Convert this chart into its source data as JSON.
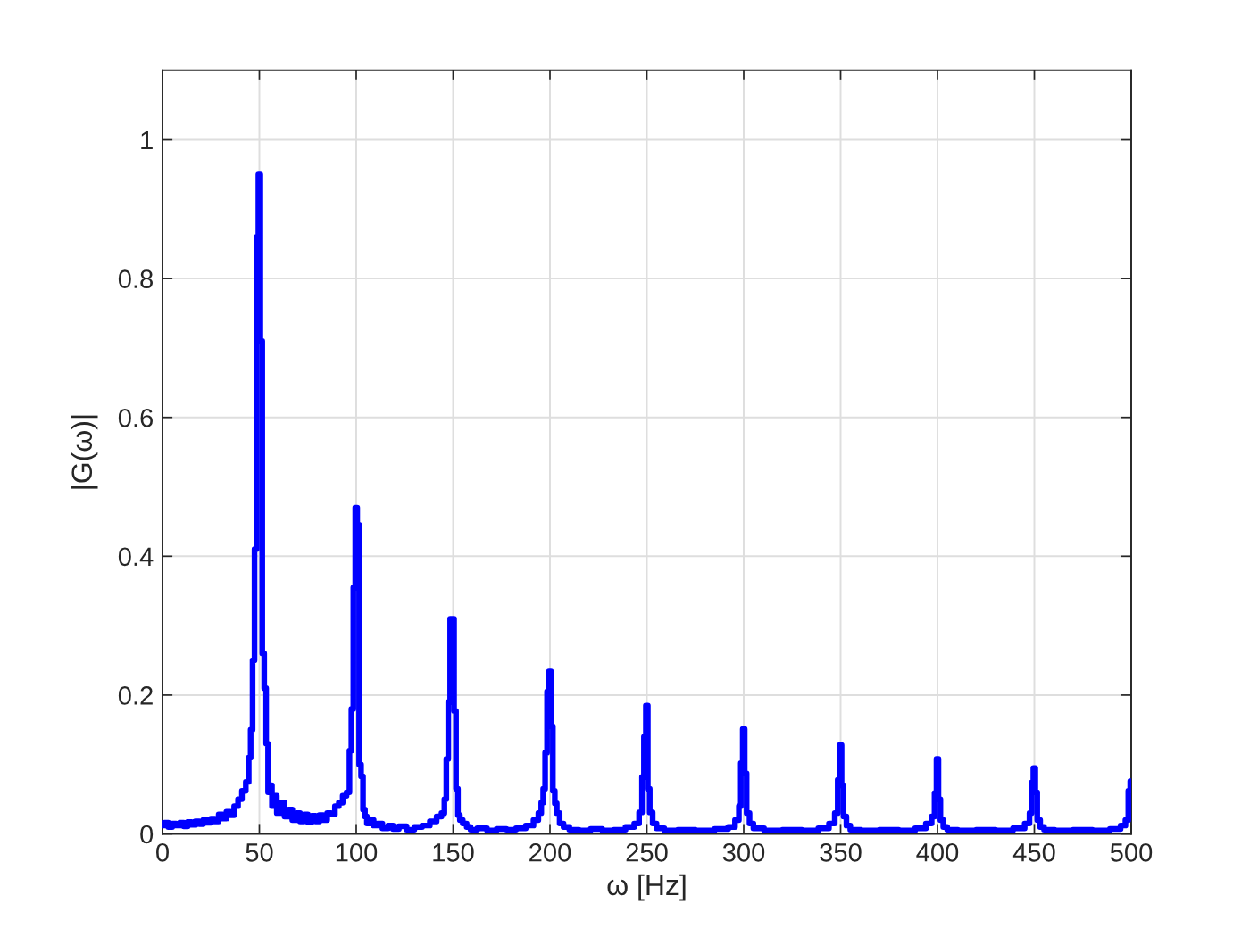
{
  "chart_data": {
    "type": "step",
    "xlabel": "ω [Hz]",
    "ylabel": "|G(ω)|",
    "x": [
      0,
      2,
      4,
      6,
      8,
      10,
      12,
      14,
      16,
      18,
      20,
      22,
      24,
      26,
      28,
      30,
      32,
      34,
      36,
      38,
      40,
      42,
      44,
      45,
      46,
      47,
      48,
      49,
      50,
      51,
      52,
      53,
      54,
      55,
      56,
      57,
      58,
      60,
      62,
      64,
      66,
      68,
      70,
      72,
      74,
      76,
      78,
      80,
      82,
      84,
      86,
      88,
      90,
      92,
      94,
      96,
      97,
      98,
      99,
      100,
      101,
      102,
      103,
      104,
      105,
      106,
      108,
      110,
      112,
      115,
      118,
      120,
      124,
      128,
      132,
      136,
      140,
      143,
      145,
      146,
      147,
      148,
      149,
      150,
      151,
      152,
      153,
      154,
      156,
      158,
      160,
      165,
      170,
      175,
      180,
      185,
      190,
      193,
      195,
      196,
      197,
      198,
      199,
      200,
      201,
      202,
      203,
      204,
      206,
      208,
      212,
      218,
      224,
      230,
      236,
      242,
      245,
      247,
      248,
      249,
      250,
      251,
      252,
      254,
      256,
      262,
      270,
      280,
      290,
      294,
      297,
      298,
      299,
      300,
      301,
      302,
      304,
      306,
      315,
      325,
      335,
      342,
      346,
      348,
      349,
      350,
      351,
      352,
      354,
      356,
      365,
      375,
      385,
      392,
      396,
      398,
      399,
      400,
      401,
      402,
      404,
      406,
      415,
      425,
      435,
      443,
      447,
      448,
      449,
      450,
      451,
      452,
      454,
      456,
      465,
      475,
      485,
      493,
      496,
      498,
      499,
      500
    ],
    "series": [
      {
        "color": "#0000ff",
        "values": [
          0.012,
          0.016,
          0.01,
          0.015,
          0.012,
          0.016,
          0.011,
          0.017,
          0.013,
          0.018,
          0.014,
          0.02,
          0.016,
          0.022,
          0.018,
          0.028,
          0.022,
          0.032,
          0.027,
          0.04,
          0.05,
          0.062,
          0.075,
          0.11,
          0.15,
          0.25,
          0.41,
          0.86,
          0.95,
          0.71,
          0.26,
          0.21,
          0.13,
          0.06,
          0.07,
          0.04,
          0.055,
          0.03,
          0.045,
          0.025,
          0.035,
          0.02,
          0.03,
          0.018,
          0.028,
          0.017,
          0.026,
          0.018,
          0.027,
          0.02,
          0.03,
          0.028,
          0.04,
          0.045,
          0.055,
          0.06,
          0.12,
          0.18,
          0.355,
          0.47,
          0.445,
          0.1,
          0.083,
          0.035,
          0.025,
          0.015,
          0.02,
          0.012,
          0.015,
          0.008,
          0.012,
          0.007,
          0.011,
          0.006,
          0.01,
          0.012,
          0.018,
          0.025,
          0.03,
          0.05,
          0.108,
          0.19,
          0.31,
          0.31,
          0.177,
          0.065,
          0.027,
          0.02,
          0.015,
          0.01,
          0.006,
          0.008,
          0.005,
          0.007,
          0.006,
          0.008,
          0.012,
          0.02,
          0.03,
          0.045,
          0.065,
          0.117,
          0.205,
          0.234,
          0.155,
          0.062,
          0.044,
          0.03,
          0.015,
          0.01,
          0.006,
          0.005,
          0.007,
          0.005,
          0.006,
          0.01,
          0.015,
          0.031,
          0.082,
          0.14,
          0.185,
          0.065,
          0.031,
          0.015,
          0.008,
          0.005,
          0.006,
          0.005,
          0.007,
          0.01,
          0.02,
          0.04,
          0.102,
          0.151,
          0.087,
          0.03,
          0.015,
          0.008,
          0.005,
          0.006,
          0.005,
          0.008,
          0.015,
          0.03,
          0.078,
          0.128,
          0.07,
          0.025,
          0.012,
          0.006,
          0.005,
          0.006,
          0.005,
          0.008,
          0.015,
          0.025,
          0.059,
          0.108,
          0.05,
          0.02,
          0.01,
          0.006,
          0.005,
          0.006,
          0.005,
          0.008,
          0.015,
          0.03,
          0.074,
          0.095,
          0.06,
          0.02,
          0.01,
          0.006,
          0.005,
          0.006,
          0.005,
          0.007,
          0.012,
          0.02,
          0.062,
          0.076
        ]
      }
    ],
    "xlim": [
      0,
      500
    ],
    "ylim": [
      0,
      1.1
    ],
    "xticks": [
      0,
      50,
      100,
      150,
      200,
      250,
      300,
      350,
      400,
      450,
      500
    ],
    "yticks": [
      0,
      0.2,
      0.4,
      0.6,
      0.8,
      1
    ],
    "grid": true
  }
}
